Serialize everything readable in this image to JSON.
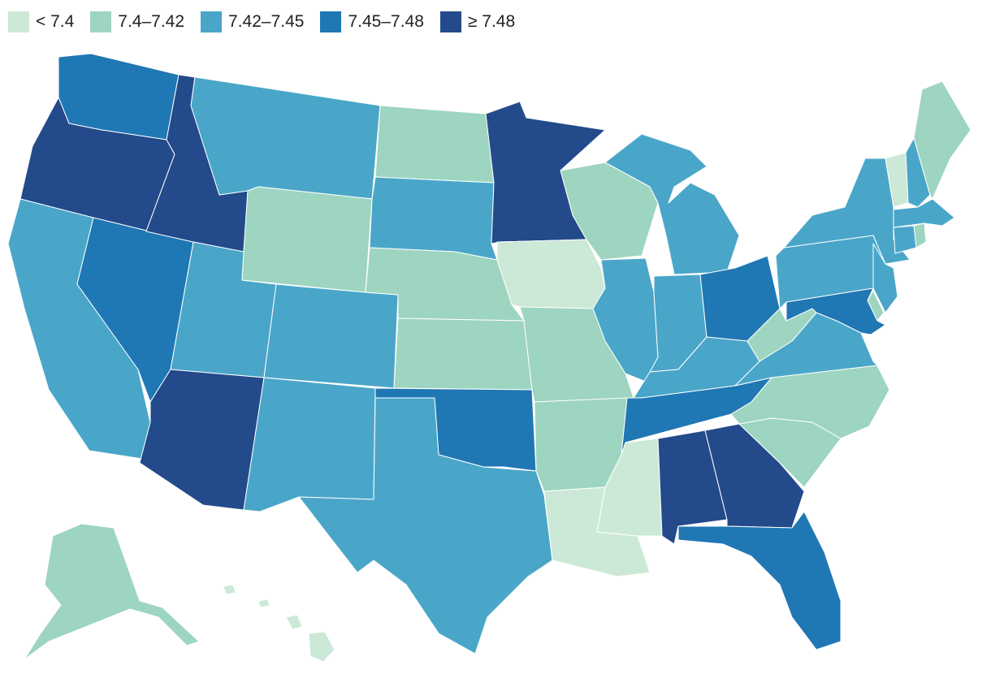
{
  "legend": [
    {
      "label": "< 7.4",
      "color": "#cce8d6"
    },
    {
      "label": "7.4–7.42",
      "color": "#9dd5c0"
    },
    {
      "label": "7.42–7.45",
      "color": "#4aa6c9"
    },
    {
      "label": "7.45–7.48",
      "color": "#1f77b4"
    },
    {
      "label": "≥ 7.48",
      "color": "#234a8a"
    }
  ],
  "states": [
    {
      "code": "WA",
      "cls": 3
    },
    {
      "code": "OR",
      "cls": 4
    },
    {
      "code": "CA",
      "cls": 2
    },
    {
      "code": "NV",
      "cls": 3
    },
    {
      "code": "ID",
      "cls": 4
    },
    {
      "code": "MT",
      "cls": 2
    },
    {
      "code": "WY",
      "cls": 1
    },
    {
      "code": "UT",
      "cls": 2
    },
    {
      "code": "AZ",
      "cls": 4
    },
    {
      "code": "CO",
      "cls": 2
    },
    {
      "code": "NM",
      "cls": 2
    },
    {
      "code": "ND",
      "cls": 1
    },
    {
      "code": "SD",
      "cls": 2
    },
    {
      "code": "NE",
      "cls": 1
    },
    {
      "code": "KS",
      "cls": 1
    },
    {
      "code": "OK",
      "cls": 3
    },
    {
      "code": "TX",
      "cls": 2
    },
    {
      "code": "MN",
      "cls": 4
    },
    {
      "code": "IA",
      "cls": 0
    },
    {
      "code": "MO",
      "cls": 1
    },
    {
      "code": "AR",
      "cls": 1
    },
    {
      "code": "LA",
      "cls": 0
    },
    {
      "code": "WI",
      "cls": 1
    },
    {
      "code": "IL",
      "cls": 2
    },
    {
      "code": "MI",
      "cls": 2
    },
    {
      "code": "IN",
      "cls": 2
    },
    {
      "code": "OH",
      "cls": 3
    },
    {
      "code": "KY",
      "cls": 2
    },
    {
      "code": "TN",
      "cls": 3
    },
    {
      "code": "MS",
      "cls": 0
    },
    {
      "code": "AL",
      "cls": 4
    },
    {
      "code": "GA",
      "cls": 4
    },
    {
      "code": "FL",
      "cls": 3
    },
    {
      "code": "SC",
      "cls": 1
    },
    {
      "code": "NC",
      "cls": 1
    },
    {
      "code": "VA",
      "cls": 2
    },
    {
      "code": "WV",
      "cls": 1
    },
    {
      "code": "PA",
      "cls": 2
    },
    {
      "code": "NY",
      "cls": 2
    },
    {
      "code": "VT",
      "cls": 0
    },
    {
      "code": "NH",
      "cls": 2
    },
    {
      "code": "ME",
      "cls": 1
    },
    {
      "code": "MA",
      "cls": 2
    },
    {
      "code": "CT",
      "cls": 2
    },
    {
      "code": "RI",
      "cls": 1
    },
    {
      "code": "NJ",
      "cls": 2
    },
    {
      "code": "DE",
      "cls": 1
    },
    {
      "code": "MD",
      "cls": 3
    },
    {
      "code": "AK",
      "cls": 1
    },
    {
      "code": "HI",
      "cls": 0
    }
  ]
}
